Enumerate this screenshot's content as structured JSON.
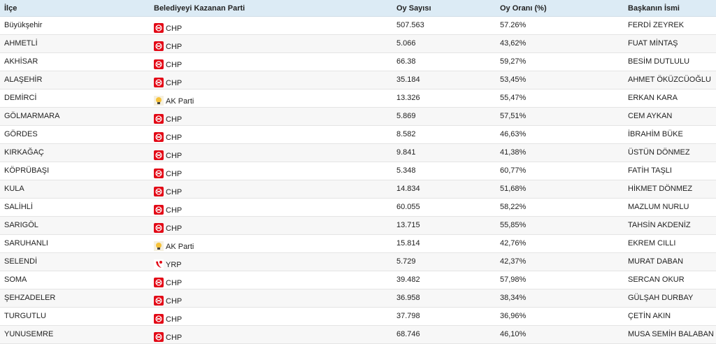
{
  "header": [
    "İlçe",
    "Belediyeyi Kazanan Parti",
    "Oy Sayısı",
    "Oy Oranı (%)",
    "Başkanın İsmi"
  ],
  "rows": [
    {
      "district": "Büyükşehir",
      "party": "CHP",
      "icon": "chp",
      "votes": "507.563",
      "rate": "57.26%",
      "mayor": "FERDİ ZEYREK"
    },
    {
      "district": "AHMETLİ",
      "party": "CHP",
      "icon": "chp",
      "votes": "5.066",
      "rate": "43,62%",
      "mayor": "FUAT MİNTAŞ"
    },
    {
      "district": "AKHİSAR",
      "party": "CHP",
      "icon": "chp",
      "votes": "66.38",
      "rate": "59,27%",
      "mayor": "BESİM DUTLULU"
    },
    {
      "district": "ALAŞEHİR",
      "party": "CHP",
      "icon": "chp",
      "votes": "35.184",
      "rate": "53,45%",
      "mayor": "AHMET ÖKÜZCÜOĞLU"
    },
    {
      "district": "DEMİRCİ",
      "party": "AK Parti",
      "icon": "akp",
      "votes": "13.326",
      "rate": "55,47%",
      "mayor": "ERKAN KARA"
    },
    {
      "district": "GÖLMARMARA",
      "party": "CHP",
      "icon": "chp",
      "votes": "5.869",
      "rate": "57,51%",
      "mayor": "CEM AYKAN"
    },
    {
      "district": "GÖRDES",
      "party": "CHP",
      "icon": "chp",
      "votes": "8.582",
      "rate": "46,63%",
      "mayor": "İBRAHİM BÜKE"
    },
    {
      "district": "KIRKAĞAÇ",
      "party": "CHP",
      "icon": "chp",
      "votes": "9.841",
      "rate": "41,38%",
      "mayor": "ÜSTÜN DÖNMEZ"
    },
    {
      "district": "KÖPRÜBAŞI",
      "party": "CHP",
      "icon": "chp",
      "votes": "5.348",
      "rate": "60,77%",
      "mayor": "FATİH TAŞLI"
    },
    {
      "district": "KULA",
      "party": "CHP",
      "icon": "chp",
      "votes": "14.834",
      "rate": "51,68%",
      "mayor": "HİKMET DÖNMEZ"
    },
    {
      "district": "SALİHLİ",
      "party": "CHP",
      "icon": "chp",
      "votes": "60.055",
      "rate": "58,22%",
      "mayor": "MAZLUM NURLU"
    },
    {
      "district": "SARIGÖL",
      "party": "CHP",
      "icon": "chp",
      "votes": "13.715",
      "rate": "55,85%",
      "mayor": "TAHSİN AKDENİZ"
    },
    {
      "district": "SARUHANLI",
      "party": "AK Parti",
      "icon": "akp",
      "votes": "15.814",
      "rate": "42,76%",
      "mayor": "EKREM CILLI"
    },
    {
      "district": "SELENDİ",
      "party": "YRP",
      "icon": "yrp",
      "votes": "5.729",
      "rate": "42,37%",
      "mayor": "MURAT DABAN"
    },
    {
      "district": "SOMA",
      "party": "CHP",
      "icon": "chp",
      "votes": "39.482",
      "rate": "57,98%",
      "mayor": "SERCAN OKUR"
    },
    {
      "district": "ŞEHZADELER",
      "party": "CHP",
      "icon": "chp",
      "votes": "36.958",
      "rate": "38,34%",
      "mayor": "GÜLŞAH DURBAY"
    },
    {
      "district": "TURGUTLU",
      "party": "CHP",
      "icon": "chp",
      "votes": "37.798",
      "rate": "36,96%",
      "mayor": "ÇETİN AKIN"
    },
    {
      "district": "YUNUSEMRE",
      "party": "CHP",
      "icon": "chp",
      "votes": "68.746",
      "rate": "46,10%",
      "mayor": "MUSA SEMİH BALABAN"
    }
  ]
}
